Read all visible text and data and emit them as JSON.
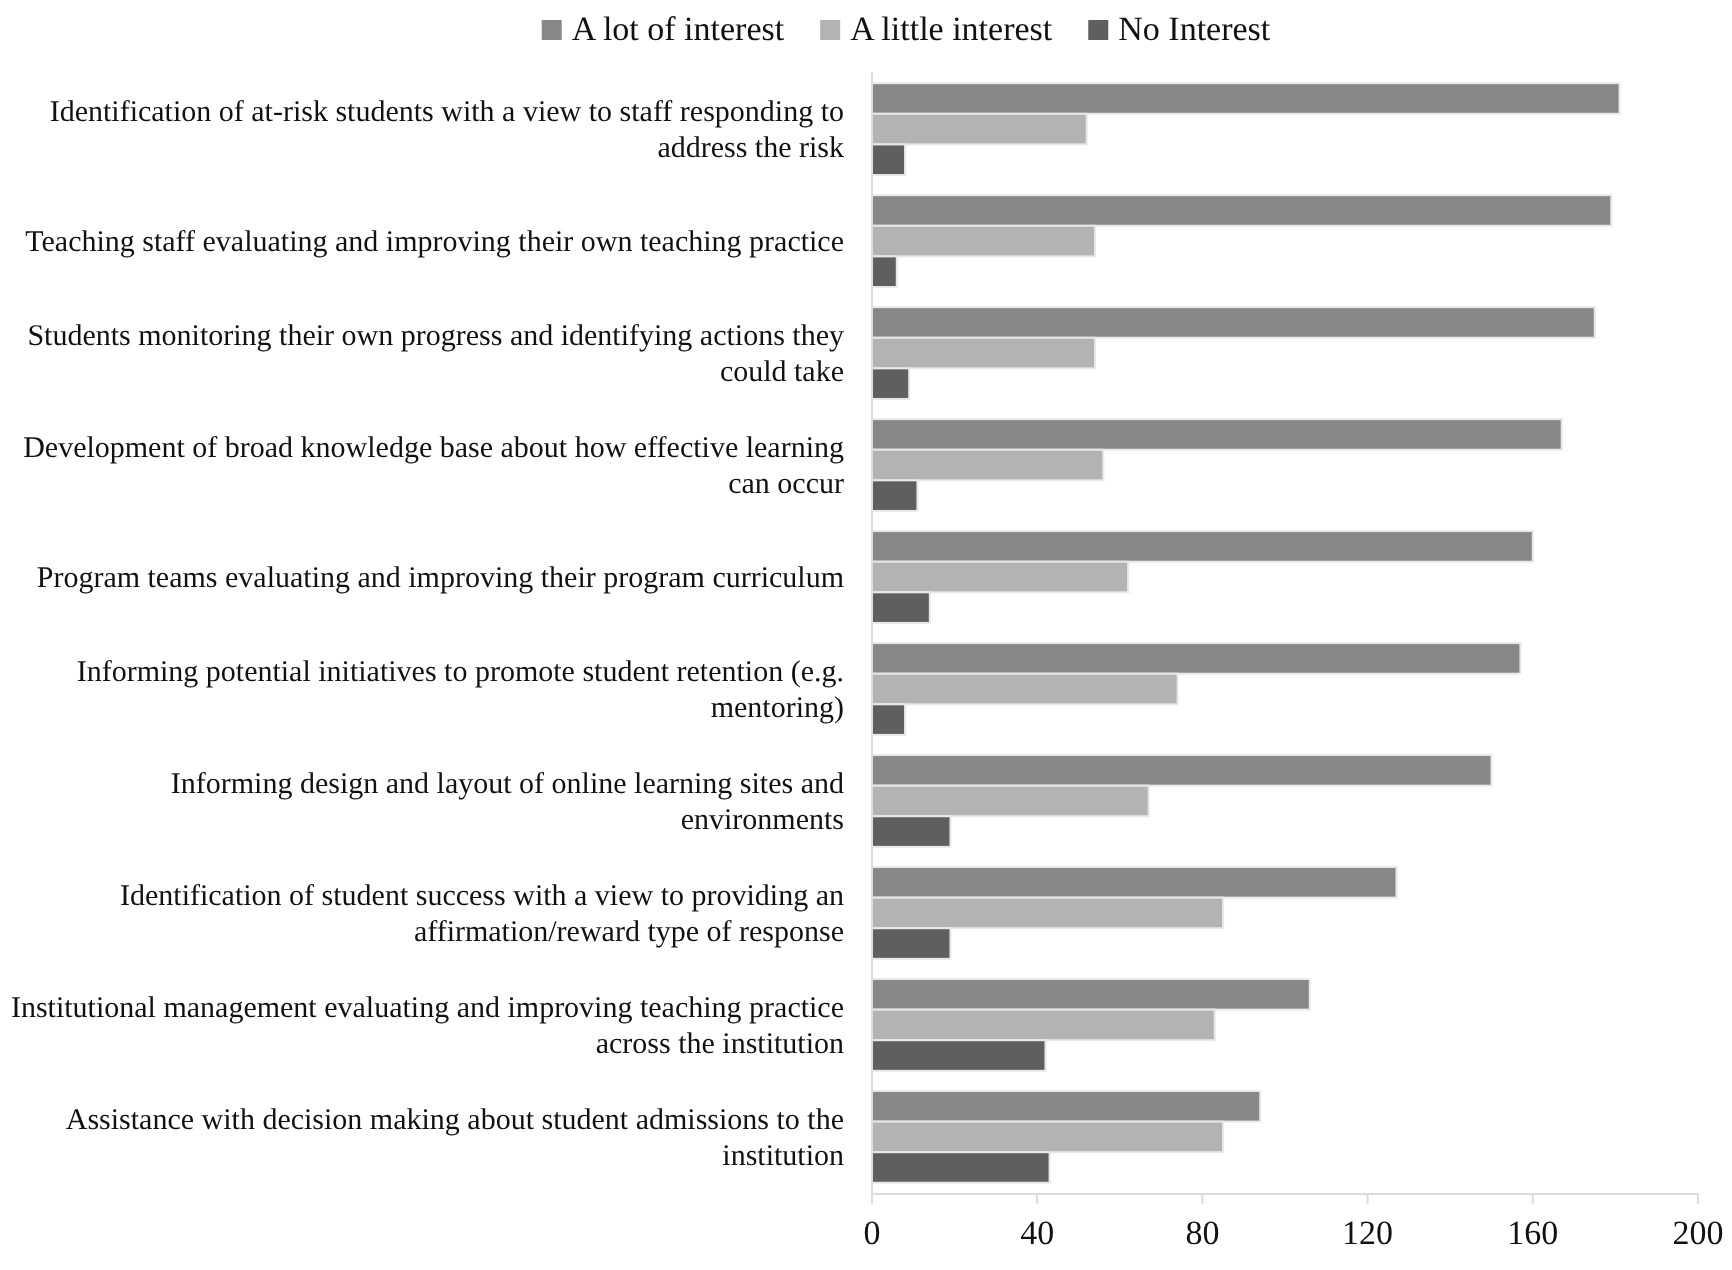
{
  "chart_data": {
    "type": "bar",
    "orientation": "horizontal",
    "categories": [
      "Identification of at-risk students with a view to staff responding to address the risk",
      "Teaching staff evaluating and improving their own teaching practice",
      "Students monitoring their own progress and identifying actions they could take",
      "Development of broad knowledge base about how effective learning can occur",
      "Program teams evaluating and improving their program curriculum",
      "Informing potential initiatives to promote student retention (e.g. mentoring)",
      "Informing design and layout of online learning sites and environments",
      "Identification of student success with a view to providing an affirmation/reward type of response",
      "Institutional management evaluating and improving teaching practice across the institution",
      "Assistance with decision making about student admissions to the institution"
    ],
    "series": [
      {
        "name": "A lot of interest",
        "color": "#878787",
        "values": [
          181,
          179,
          175,
          167,
          160,
          157,
          150,
          127,
          106,
          94
        ]
      },
      {
        "name": "A little interest",
        "color": "#b3b3b3",
        "values": [
          52,
          54,
          54,
          56,
          62,
          74,
          67,
          85,
          83,
          85
        ]
      },
      {
        "name": "No Interest",
        "color": "#5f5f5f",
        "values": [
          8,
          6,
          9,
          11,
          14,
          8,
          19,
          19,
          42,
          43
        ]
      }
    ],
    "xlim": [
      0,
      200
    ],
    "xticks": [
      0,
      40,
      80,
      120,
      160,
      200
    ],
    "legend": "top",
    "grid": false
  }
}
